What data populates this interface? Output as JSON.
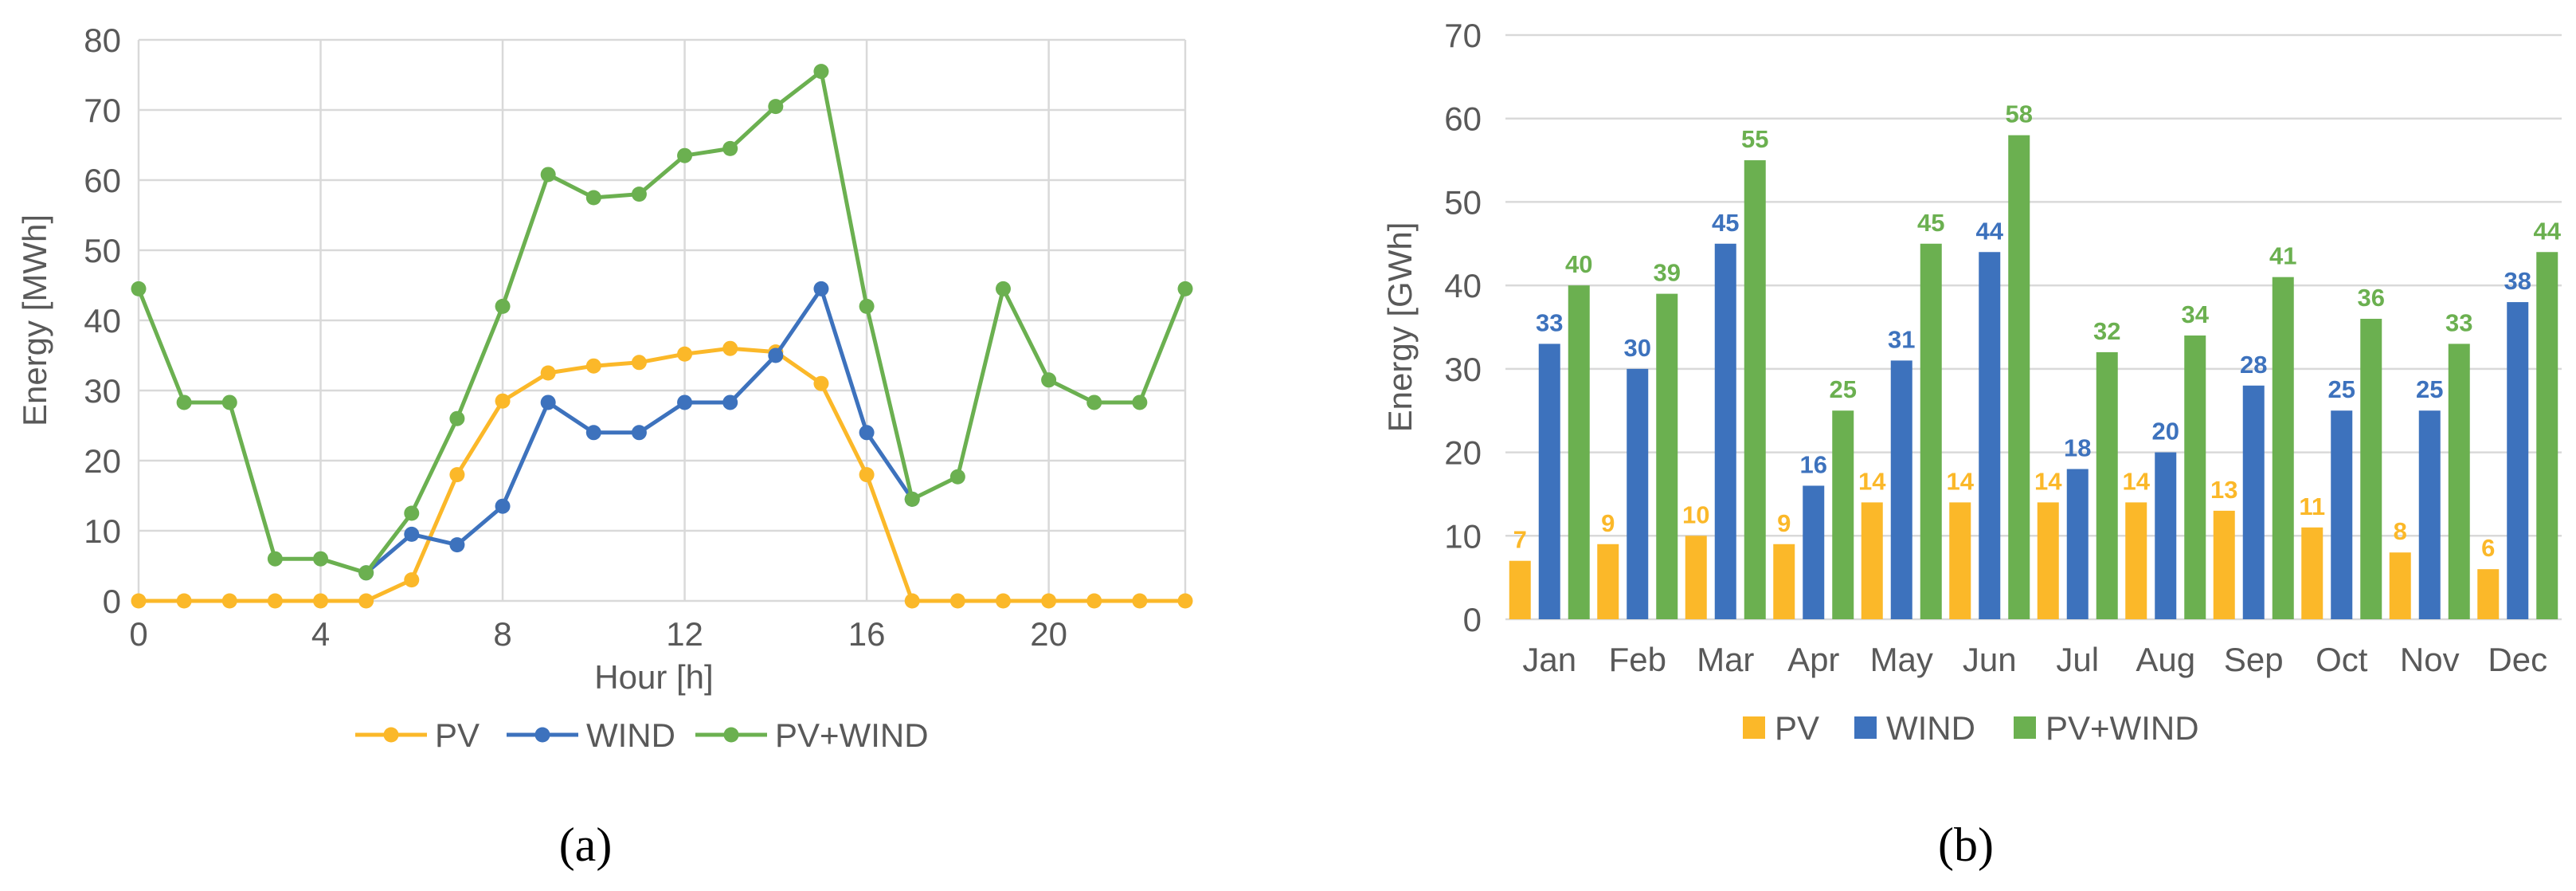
{
  "panels": {
    "a": {
      "caption": "(a)"
    },
    "b": {
      "caption": "(b)"
    }
  },
  "colors": {
    "PV": "#fbb829",
    "WIND": "#3d72bd",
    "PV+WIND": "#6bb050",
    "grid": "#d9d9d9",
    "text": "#595959"
  },
  "chart_data": [
    {
      "type": "line",
      "title": "",
      "xlabel": "Hour [h]",
      "ylabel": "Energy [MWh]",
      "xlim": [
        0,
        23
      ],
      "ylim": [
        0,
        80
      ],
      "xticks": [
        0,
        4,
        8,
        12,
        16,
        20
      ],
      "yticks": [
        0,
        10,
        20,
        30,
        40,
        50,
        60,
        70,
        80
      ],
      "grid": true,
      "legend_position": "bottom",
      "x": [
        0,
        1,
        2,
        3,
        4,
        5,
        6,
        7,
        8,
        9,
        10,
        11,
        12,
        13,
        14,
        15,
        16,
        17,
        18,
        19,
        20,
        21,
        22,
        23
      ],
      "series": [
        {
          "name": "PV",
          "values": [
            0,
            0,
            0,
            0,
            0,
            0,
            3,
            18,
            28.5,
            32.5,
            33.5,
            34,
            35.2,
            36,
            35.5,
            31,
            18,
            0,
            0,
            0,
            0,
            0,
            0,
            0
          ]
        },
        {
          "name": "WIND",
          "values": [
            null,
            null,
            null,
            null,
            null,
            4,
            9.5,
            8,
            13.5,
            28.3,
            24,
            24,
            28.3,
            28.3,
            35,
            44.5,
            24,
            14.5,
            null,
            null,
            null,
            null,
            null,
            null
          ]
        },
        {
          "name": "PV+WIND",
          "values": [
            44.5,
            28.3,
            28.3,
            6,
            6,
            4,
            12.5,
            26,
            42,
            60.8,
            57.5,
            58,
            63.5,
            64.5,
            70.5,
            75.5,
            42,
            14.5,
            17.7,
            44.5,
            31.5,
            28.3,
            28.3,
            44.5
          ]
        }
      ]
    },
    {
      "type": "bar",
      "title": "",
      "xlabel": "",
      "ylabel": "Energy [GWh]",
      "ylim": [
        0,
        70
      ],
      "yticks": [
        0,
        10,
        20,
        30,
        40,
        50,
        60,
        70
      ],
      "grid": true,
      "legend_position": "bottom",
      "categories": [
        "Jan",
        "Feb",
        "Mar",
        "Apr",
        "May",
        "Jun",
        "Jul",
        "Aug",
        "Sep",
        "Oct",
        "Nov",
        "Dec"
      ],
      "series": [
        {
          "name": "PV",
          "values": [
            7,
            9,
            10,
            9,
            14,
            14,
            14,
            14,
            13,
            11,
            8,
            6
          ]
        },
        {
          "name": "WIND",
          "values": [
            33,
            30,
            45,
            16,
            31,
            44,
            18,
            20,
            28,
            25,
            25,
            38
          ]
        },
        {
          "name": "PV+WIND",
          "values": [
            40,
            39,
            55,
            25,
            45,
            58,
            32,
            34,
            41,
            36,
            33,
            44
          ]
        }
      ]
    }
  ]
}
